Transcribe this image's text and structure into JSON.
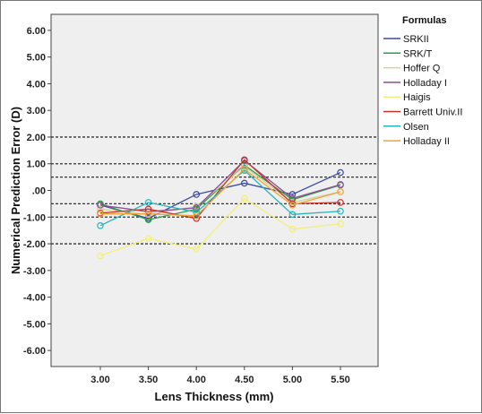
{
  "chart_data": {
    "type": "line",
    "xlabel": "Lens Thickness (mm)",
    "ylabel": "Numerical Prediction Error (D)",
    "x": [
      "3.00",
      "3.50",
      "4.00",
      "4.50",
      "5.00",
      "5.50"
    ],
    "ylim": [
      -6.6,
      6.6
    ],
    "yticks": [
      "6.00",
      "5.00",
      "4.00",
      "3.00",
      "2.00",
      "1.00",
      ".00",
      "-1.00",
      "-2.00",
      "-3.00",
      "-4.00",
      "-5.00",
      "-6.00"
    ],
    "ytick_values": [
      6,
      5,
      4,
      3,
      2,
      1,
      0,
      -1,
      -2,
      -3,
      -4,
      -5,
      -6
    ],
    "reference_lines": [
      2,
      1,
      0.5,
      -0.5,
      -1,
      -2
    ],
    "legend_title": "Formulas",
    "legend_position": "right",
    "grid": false,
    "background": "#efefef",
    "series": [
      {
        "name": "SRKII",
        "color": "#3b4a9e",
        "values": [
          -0.55,
          -1.05,
          -0.15,
          0.27,
          -0.15,
          0.67
        ]
      },
      {
        "name": "SRK/T",
        "color": "#2e9e48",
        "values": [
          -0.5,
          -1.1,
          -0.7,
          0.95,
          -0.35,
          0.2
        ]
      },
      {
        "name": "Hoffer Q",
        "color": "#d8d09a",
        "values": [
          -0.7,
          -0.9,
          -0.6,
          0.9,
          -0.45,
          -0.05
        ]
      },
      {
        "name": "Holladay I",
        "color": "#8a4f94",
        "values": [
          -0.55,
          -0.8,
          -0.65,
          1.12,
          -0.3,
          0.22
        ]
      },
      {
        "name": "Haigis",
        "color": "#f3ee7d",
        "values": [
          -2.45,
          -1.8,
          -2.2,
          -0.3,
          -1.45,
          -1.25
        ]
      },
      {
        "name": "Barrett Univ.II",
        "color": "#c8322a",
        "values": [
          -0.85,
          -0.7,
          -1.05,
          1.15,
          -0.5,
          -0.45
        ]
      },
      {
        "name": "Olsen",
        "color": "#2ab3b8",
        "values": [
          -1.32,
          -0.45,
          -0.82,
          0.75,
          -0.9,
          -0.78
        ]
      },
      {
        "name": "Holladay II",
        "color": "#f0a53c",
        "values": [
          -0.88,
          -0.88,
          -0.95,
          0.8,
          -0.55,
          -0.05
        ]
      }
    ]
  }
}
